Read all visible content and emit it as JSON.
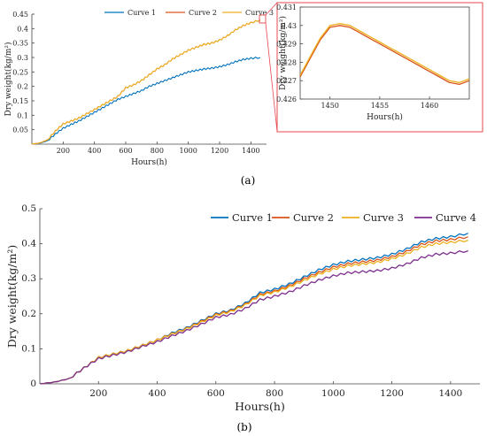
{
  "colors": {
    "curve1": "#0072BD",
    "curve2": "#D95319",
    "curve3": "#EDB120",
    "curve4": "#7E2F8E",
    "zoom_box": "#E5484D"
  },
  "chart_data": [
    {
      "id": "a-main",
      "type": "line",
      "xlabel": "Hours(h)",
      "ylabel": "Dry weight(kg/m²)",
      "xlim": [
        0,
        1500
      ],
      "ylim": [
        0,
        0.45
      ],
      "xticks": [
        200,
        400,
        600,
        800,
        1000,
        1200,
        1400
      ],
      "yticks": [
        0.05,
        0.1,
        0.15,
        0.2,
        0.25,
        0.3,
        0.35,
        0.4,
        0.45
      ],
      "legend": "top",
      "series": [
        {
          "name": "Curve 1",
          "color_key": "curve1",
          "x": [
            0,
            50,
            100,
            150,
            200,
            250,
            300,
            350,
            400,
            450,
            500,
            550,
            600,
            650,
            700,
            750,
            800,
            850,
            900,
            950,
            1000,
            1050,
            1100,
            1150,
            1200,
            1250,
            1300,
            1350,
            1400,
            1460
          ],
          "y": [
            0,
            0.003,
            0.012,
            0.035,
            0.055,
            0.068,
            0.08,
            0.095,
            0.11,
            0.125,
            0.14,
            0.155,
            0.165,
            0.175,
            0.185,
            0.2,
            0.21,
            0.22,
            0.23,
            0.24,
            0.25,
            0.255,
            0.26,
            0.263,
            0.268,
            0.275,
            0.285,
            0.293,
            0.297,
            0.3
          ]
        },
        {
          "name": "Curve 2",
          "color_key": "curve2",
          "x": [
            0,
            50,
            100,
            150,
            200,
            250,
            300,
            350,
            400,
            450,
            500,
            550,
            600,
            650,
            700,
            750,
            800,
            850,
            900,
            950,
            1000,
            1050,
            1100,
            1150,
            1200,
            1250,
            1300,
            1350,
            1400,
            1460
          ],
          "y": [
            0,
            0.004,
            0.015,
            0.045,
            0.07,
            0.08,
            0.09,
            0.105,
            0.12,
            0.135,
            0.15,
            0.165,
            0.195,
            0.205,
            0.22,
            0.24,
            0.26,
            0.275,
            0.295,
            0.31,
            0.325,
            0.335,
            0.345,
            0.35,
            0.36,
            0.375,
            0.395,
            0.41,
            0.42,
            0.43
          ]
        },
        {
          "name": "Curve 3",
          "color_key": "curve3",
          "x": [
            0,
            50,
            100,
            150,
            200,
            250,
            300,
            350,
            400,
            450,
            500,
            550,
            600,
            650,
            700,
            750,
            800,
            850,
            900,
            950,
            1000,
            1050,
            1100,
            1150,
            1200,
            1250,
            1300,
            1350,
            1400,
            1460
          ],
          "y": [
            0,
            0.004,
            0.015,
            0.045,
            0.07,
            0.08,
            0.09,
            0.105,
            0.12,
            0.135,
            0.15,
            0.165,
            0.195,
            0.205,
            0.22,
            0.24,
            0.26,
            0.275,
            0.295,
            0.31,
            0.325,
            0.335,
            0.345,
            0.35,
            0.36,
            0.375,
            0.395,
            0.41,
            0.42,
            0.43
          ]
        }
      ]
    },
    {
      "id": "a-zoom",
      "type": "line",
      "xlabel": "Hours(h)",
      "ylabel": "Dry weight(kg/m²)",
      "xlim": [
        1447,
        1464
      ],
      "ylim": [
        0.426,
        0.431
      ],
      "xticks": [
        1450,
        1455,
        1460
      ],
      "yticks": [
        0.426,
        0.427,
        0.428,
        0.429,
        0.43,
        0.431
      ],
      "series": [
        {
          "name": "Curve 2",
          "color_key": "curve2",
          "x": [
            1447,
            1448,
            1449,
            1450,
            1451,
            1452,
            1453,
            1454,
            1455,
            1456,
            1457,
            1458,
            1459,
            1460,
            1461,
            1462,
            1463,
            1464
          ],
          "y": [
            0.4272,
            0.4282,
            0.4292,
            0.4299,
            0.43,
            0.4299,
            0.4296,
            0.4293,
            0.429,
            0.4287,
            0.4284,
            0.4281,
            0.4278,
            0.4275,
            0.4272,
            0.4269,
            0.4268,
            0.427
          ]
        },
        {
          "name": "Curve 3",
          "color_key": "curve3",
          "x": [
            1447,
            1448,
            1449,
            1450,
            1451,
            1452,
            1453,
            1454,
            1455,
            1456,
            1457,
            1458,
            1459,
            1460,
            1461,
            1462,
            1463,
            1464
          ],
          "y": [
            0.4273,
            0.4283,
            0.4293,
            0.43,
            0.4301,
            0.43,
            0.4297,
            0.4294,
            0.4291,
            0.4288,
            0.4285,
            0.4282,
            0.4279,
            0.4276,
            0.4273,
            0.427,
            0.4269,
            0.4271
          ]
        }
      ]
    },
    {
      "id": "b",
      "type": "line",
      "xlabel": "Hours(h)",
      "ylabel": "Dry weight(kg/m²)",
      "xlim": [
        0,
        1500
      ],
      "ylim": [
        0,
        0.5
      ],
      "xticks": [
        200,
        400,
        600,
        800,
        1000,
        1200,
        1400
      ],
      "yticks": [
        0,
        0.1,
        0.2,
        0.3,
        0.4,
        0.5
      ],
      "legend": "top-right",
      "series": [
        {
          "name": "Curve 1",
          "color_key": "curve1",
          "x": [
            0,
            50,
            100,
            150,
            200,
            250,
            300,
            350,
            400,
            450,
            500,
            550,
            600,
            650,
            700,
            750,
            800,
            850,
            900,
            950,
            1000,
            1050,
            1100,
            1150,
            1200,
            1250,
            1300,
            1350,
            1400,
            1460
          ],
          "y": [
            0,
            0.005,
            0.015,
            0.045,
            0.075,
            0.085,
            0.095,
            0.11,
            0.125,
            0.145,
            0.16,
            0.18,
            0.2,
            0.21,
            0.23,
            0.26,
            0.27,
            0.285,
            0.305,
            0.325,
            0.34,
            0.35,
            0.355,
            0.36,
            0.37,
            0.385,
            0.405,
            0.415,
            0.42,
            0.43
          ]
        },
        {
          "name": "Curve 2",
          "color_key": "curve2",
          "x": [
            0,
            50,
            100,
            150,
            200,
            250,
            300,
            350,
            400,
            450,
            500,
            550,
            600,
            650,
            700,
            750,
            800,
            850,
            900,
            950,
            1000,
            1050,
            1100,
            1150,
            1200,
            1250,
            1300,
            1350,
            1400,
            1460
          ],
          "y": [
            0,
            0.005,
            0.015,
            0.045,
            0.075,
            0.085,
            0.095,
            0.11,
            0.125,
            0.143,
            0.158,
            0.178,
            0.198,
            0.208,
            0.227,
            0.255,
            0.265,
            0.28,
            0.3,
            0.318,
            0.333,
            0.343,
            0.348,
            0.353,
            0.363,
            0.378,
            0.398,
            0.408,
            0.412,
            0.42
          ]
        },
        {
          "name": "Curve 3",
          "color_key": "curve3",
          "x": [
            0,
            50,
            100,
            150,
            200,
            250,
            300,
            350,
            400,
            450,
            500,
            550,
            600,
            650,
            700,
            750,
            800,
            850,
            900,
            950,
            1000,
            1050,
            1100,
            1150,
            1200,
            1250,
            1300,
            1350,
            1400,
            1460
          ],
          "y": [
            0,
            0.005,
            0.015,
            0.045,
            0.075,
            0.085,
            0.095,
            0.11,
            0.125,
            0.142,
            0.157,
            0.176,
            0.196,
            0.206,
            0.225,
            0.252,
            0.262,
            0.276,
            0.295,
            0.313,
            0.327,
            0.337,
            0.342,
            0.347,
            0.357,
            0.371,
            0.39,
            0.4,
            0.404,
            0.41
          ]
        },
        {
          "name": "Curve 4",
          "color_key": "curve4",
          "x": [
            0,
            50,
            100,
            150,
            200,
            250,
            300,
            350,
            400,
            450,
            500,
            550,
            600,
            650,
            700,
            750,
            800,
            850,
            900,
            950,
            1000,
            1050,
            1100,
            1150,
            1200,
            1250,
            1300,
            1350,
            1400,
            1460
          ],
          "y": [
            0,
            0.005,
            0.015,
            0.045,
            0.072,
            0.082,
            0.092,
            0.107,
            0.12,
            0.137,
            0.152,
            0.17,
            0.19,
            0.198,
            0.215,
            0.24,
            0.25,
            0.262,
            0.28,
            0.296,
            0.308,
            0.317,
            0.32,
            0.323,
            0.33,
            0.342,
            0.36,
            0.37,
            0.373,
            0.38
          ]
        }
      ]
    }
  ],
  "captions": {
    "a": "(a)",
    "b": "(b)"
  }
}
